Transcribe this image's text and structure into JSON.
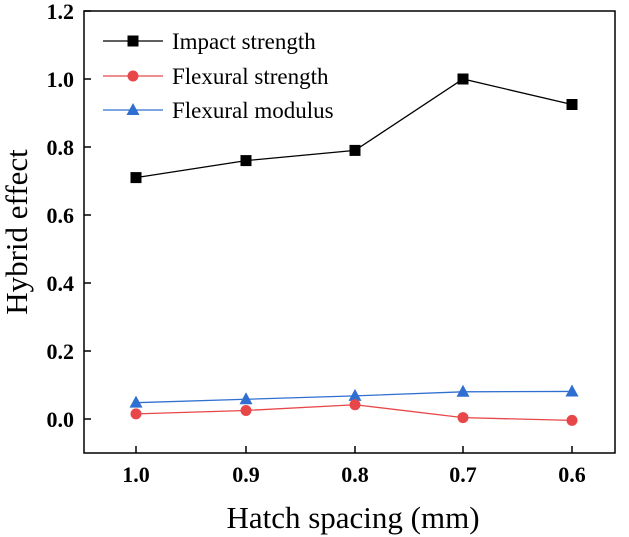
{
  "chart_data": {
    "type": "line",
    "title": "",
    "xlabel": "Hatch spacing (mm)",
    "ylabel": "Hybrid effect",
    "categories": [
      "1.0",
      "0.9",
      "0.8",
      "0.7",
      "0.6"
    ],
    "yticks": [
      "0.0",
      "0.2",
      "0.4",
      "0.6",
      "0.8",
      "1.0",
      "1.2"
    ],
    "ylim": [
      -0.1,
      1.2
    ],
    "grid": false,
    "legend_position": "top-left",
    "series": [
      {
        "name": "Impact strength",
        "marker": "square",
        "color": "#000000",
        "values": [
          0.71,
          0.76,
          0.79,
          1.0,
          0.925
        ]
      },
      {
        "name": "Flexural strength",
        "marker": "circle",
        "color": "#e8474a",
        "values": [
          0.015,
          0.025,
          0.042,
          0.004,
          -0.004
        ]
      },
      {
        "name": "Flexural modulus",
        "marker": "triangle",
        "color": "#2f6fd1",
        "values": [
          0.048,
          0.058,
          0.068,
          0.08,
          0.081
        ]
      }
    ]
  }
}
